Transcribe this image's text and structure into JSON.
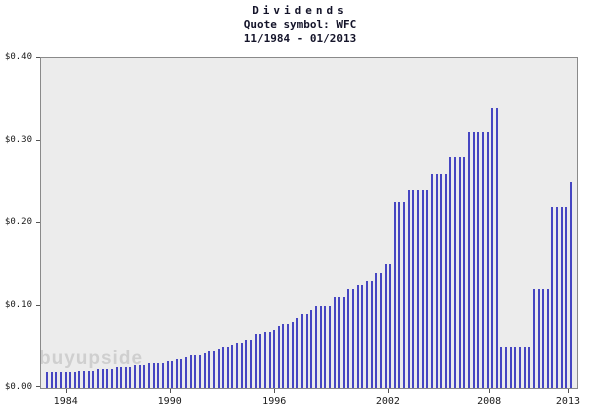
{
  "title": {
    "line1": "Dividends",
    "line2": "Quote symbol: WFC",
    "line3": "11/1984 - 01/2013"
  },
  "watermark": "buyupside",
  "chart_data": {
    "type": "bar",
    "title": "Dividends",
    "subtitle": "Quote symbol: WFC",
    "date_range": "11/1984 - 01/2013",
    "quote_symbol": "WFC",
    "xlabel": "",
    "ylabel": "",
    "ylim": [
      0,
      0.4
    ],
    "grid": false,
    "legend": "none",
    "plot_bg": "#ececec",
    "bar_color": "#4646c2",
    "x_start": "1984-Q4",
    "x_end": "2013-Q1",
    "frequency": "quarterly",
    "y_ticks": [
      {
        "label": "$0.00",
        "value": 0.0
      },
      {
        "label": "$0.10",
        "value": 0.1
      },
      {
        "label": "$0.20",
        "value": 0.2
      },
      {
        "label": "$0.30",
        "value": 0.3
      },
      {
        "label": "$0.40",
        "value": 0.4
      }
    ],
    "x_ticks": [
      {
        "label": "1984",
        "pos": 0.048
      },
      {
        "label": "1990",
        "pos": 0.242
      },
      {
        "label": "1996",
        "pos": 0.437
      },
      {
        "label": "2002",
        "pos": 0.649
      },
      {
        "label": "2008",
        "pos": 0.838
      },
      {
        "label": "2013",
        "pos": 0.985
      }
    ],
    "values": [
      0.02,
      0.02,
      0.02,
      0.02,
      0.02,
      0.02,
      0.02,
      0.021,
      0.021,
      0.021,
      0.021,
      0.023,
      0.023,
      0.023,
      0.023,
      0.025,
      0.025,
      0.025,
      0.025,
      0.028,
      0.028,
      0.028,
      0.03,
      0.03,
      0.03,
      0.03,
      0.033,
      0.033,
      0.035,
      0.035,
      0.038,
      0.04,
      0.04,
      0.04,
      0.043,
      0.045,
      0.045,
      0.047,
      0.05,
      0.05,
      0.052,
      0.055,
      0.055,
      0.058,
      0.058,
      0.065,
      0.065,
      0.068,
      0.068,
      0.07,
      0.075,
      0.078,
      0.078,
      0.08,
      0.085,
      0.09,
      0.09,
      0.095,
      0.1,
      0.1,
      0.1,
      0.1,
      0.11,
      0.11,
      0.11,
      0.12,
      0.12,
      0.125,
      0.125,
      0.13,
      0.13,
      0.14,
      0.14,
      0.15,
      0.15,
      0.225,
      0.225,
      0.225,
      0.24,
      0.24,
      0.24,
      0.24,
      0.24,
      0.26,
      0.26,
      0.26,
      0.26,
      0.28,
      0.28,
      0.28,
      0.28,
      0.31,
      0.31,
      0.31,
      0.31,
      0.31,
      0.34,
      0.34,
      0.05,
      0.05,
      0.05,
      0.05,
      0.05,
      0.05,
      0.05,
      0.12,
      0.12,
      0.12,
      0.12,
      0.22,
      0.22,
      0.22,
      0.22,
      0.25
    ]
  }
}
